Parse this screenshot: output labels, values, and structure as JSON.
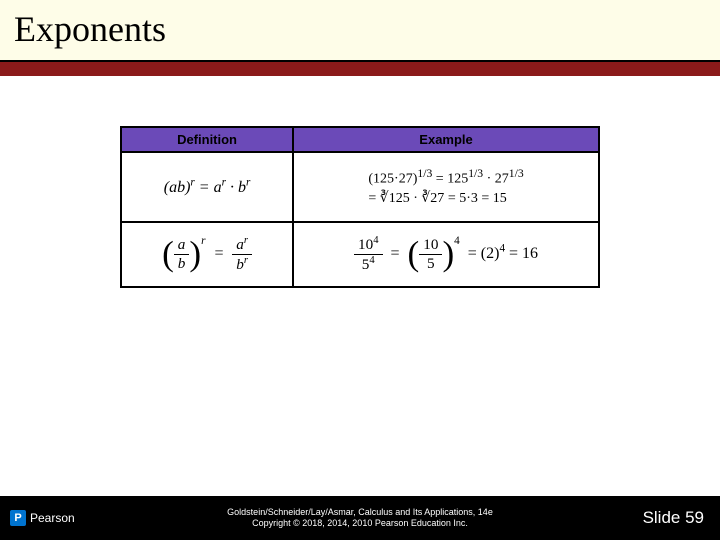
{
  "title": "Exponents",
  "colors": {
    "title_bg": "#fefde8",
    "accent_bar": "#8b1a1a",
    "table_header_bg": "#6b4ab8",
    "footer_bg": "#000000",
    "pearson_blue": "#0073cf"
  },
  "table": {
    "headers": {
      "left": "Definition",
      "right": "Example"
    },
    "rows": [
      {
        "definition": "(ab)^r = a^r · b^r",
        "example_line1": "(125·27)^{1/3} = 125^{1/3} · 27^{1/3}",
        "example_line2": "= ∛125 · ∛27 = 5·3 = 15"
      },
      {
        "definition": "(a/b)^r = a^r / b^r",
        "example": "10^4 / 5^4 = (10/5)^4 = (2)^4 = 16"
      }
    ]
  },
  "footer": {
    "publisher": "Pearson",
    "citation": "Goldstein/Schneider/Lay/Asmar, Calculus and Its Applications, 14e",
    "copyright": "Copyright © 2018, 2014, 2010 Pearson Education Inc.",
    "slide": "Slide 59"
  }
}
